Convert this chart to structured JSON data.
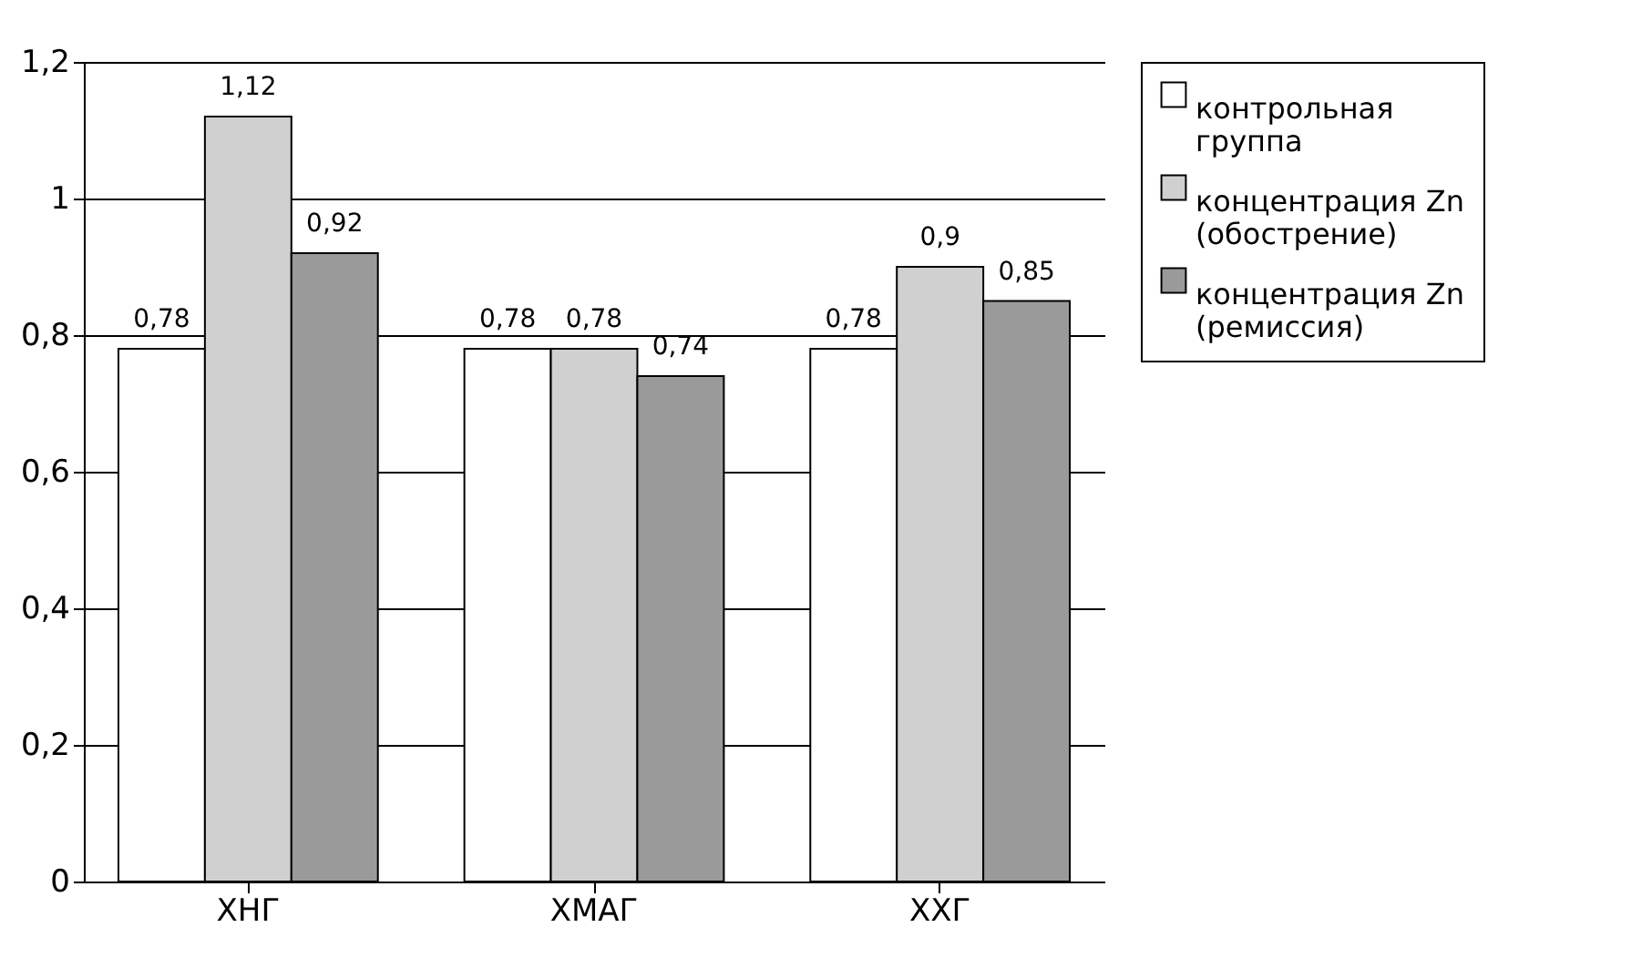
{
  "chart_data": {
    "type": "bar",
    "categories": [
      "ХНГ",
      "ХМАГ",
      "ХХГ"
    ],
    "series": [
      {
        "name": "контрольная группа",
        "color": "#ffffff",
        "values": [
          0.78,
          0.78,
          0.78
        ],
        "value_labels": [
          "0,78",
          "0,78",
          "0,78"
        ]
      },
      {
        "name": "концентрация Zn (обострение)",
        "color": "#d0d0d0",
        "values": [
          1.12,
          0.78,
          0.9
        ],
        "value_labels": [
          "1,12",
          "0,78",
          "0,9"
        ]
      },
      {
        "name": "концентрация Zn (ремиссия)",
        "color": "#9a9a9a",
        "values": [
          0.92,
          0.74,
          0.85
        ],
        "value_labels": [
          "0,92",
          "0,74",
          "0,85"
        ]
      }
    ],
    "ylim": [
      0,
      1.2
    ],
    "yticks": [
      0,
      {
        "value": 0.2,
        "label": "0,2"
      },
      {
        "value": 0.4,
        "label": "0,4"
      },
      {
        "value": 0.6,
        "label": "0,6"
      },
      {
        "value": 0.8,
        "label": "0,8"
      },
      1,
      {
        "value": 1.2,
        "label": "1,2"
      }
    ],
    "grid": "y",
    "legend": "right"
  }
}
